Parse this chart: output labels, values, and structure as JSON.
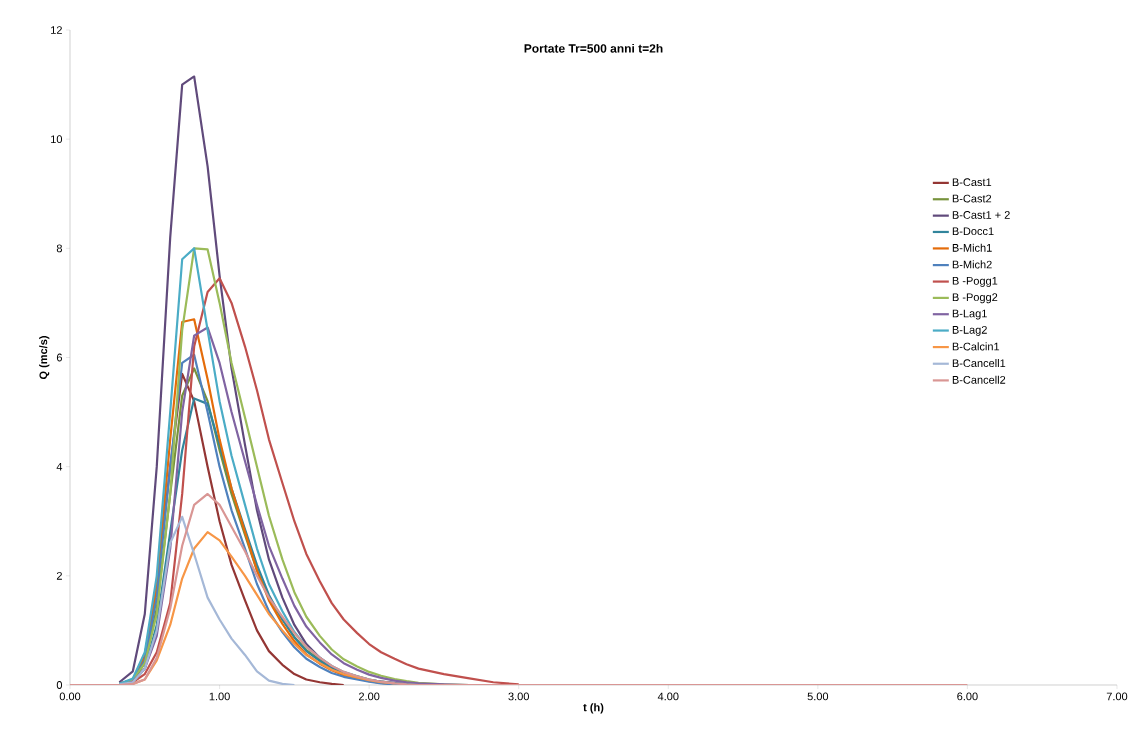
{
  "chart_data": {
    "type": "line",
    "title": "Portate Tr=500 anni t=2h",
    "xlabel": "t (h)",
    "ylabel": "Q (mc/s)",
    "x": [
      0,
      0.25,
      0.33,
      0.42,
      0.5,
      0.58,
      0.67,
      0.75,
      0.83,
      0.92,
      1.0,
      1.08,
      1.17,
      1.25,
      1.33,
      1.42,
      1.5,
      1.58,
      1.67,
      1.75,
      1.83,
      1.92,
      2.0,
      2.08,
      2.17,
      2.25,
      2.33,
      2.5,
      2.67,
      2.83,
      3.0,
      6.0
    ],
    "series": [
      {
        "name": "B-Cast1",
        "color": "#943634",
        "values": [
          null,
          null,
          0.02,
          0.1,
          0.55,
          1.8,
          4.0,
          5.7,
          5.2,
          4.0,
          3.0,
          2.2,
          1.55,
          1.0,
          0.62,
          0.37,
          0.2,
          0.1,
          0.05,
          0.02,
          0,
          null,
          null,
          null,
          null,
          null,
          null,
          null,
          null,
          null,
          null,
          null
        ]
      },
      {
        "name": "B-Cast2",
        "color": "#77933c",
        "values": [
          null,
          null,
          0.01,
          0.07,
          0.4,
          1.4,
          3.5,
          5.3,
          5.8,
          5.2,
          4.3,
          3.5,
          2.75,
          2.1,
          1.6,
          1.2,
          0.88,
          0.64,
          0.46,
          0.33,
          0.23,
          0.16,
          0.1,
          0.06,
          0.03,
          0.01,
          0,
          null,
          null,
          null,
          null,
          null
        ]
      },
      {
        "name": "B-Cast1 + 2",
        "color": "#604a7b",
        "values": [
          null,
          null,
          0.05,
          0.25,
          1.3,
          4.0,
          8.2,
          11.0,
          11.15,
          9.5,
          7.5,
          5.8,
          4.4,
          3.2,
          2.3,
          1.6,
          1.1,
          0.75,
          0.5,
          0.33,
          0.22,
          0.14,
          0.09,
          0.06,
          0.04,
          0.02,
          0.01,
          0,
          null,
          null,
          null,
          null
        ]
      },
      {
        "name": "B-Docc1",
        "color": "#31859c",
        "values": [
          null,
          null,
          0.01,
          0.05,
          0.3,
          1.1,
          2.8,
          4.3,
          5.25,
          5.15,
          4.4,
          3.6,
          2.85,
          2.2,
          1.65,
          1.2,
          0.87,
          0.62,
          0.44,
          0.3,
          0.2,
          0.13,
          0.08,
          0.05,
          0.02,
          0,
          null,
          null,
          null,
          null,
          null,
          null
        ]
      },
      {
        "name": "B-Mich1",
        "color": "#e46c0a",
        "values": [
          null,
          null,
          0.02,
          0.1,
          0.5,
          1.8,
          4.5,
          6.65,
          6.7,
          5.6,
          4.5,
          3.6,
          2.8,
          2.1,
          1.55,
          1.12,
          0.8,
          0.56,
          0.39,
          0.27,
          0.18,
          0.12,
          0.07,
          0.04,
          0.02,
          0,
          null,
          null,
          null,
          null,
          null,
          null
        ]
      },
      {
        "name": "B-Mich2",
        "color": "#4f81bd",
        "values": [
          null,
          null,
          0.02,
          0.08,
          0.45,
          1.6,
          4.0,
          5.9,
          6.05,
          5.0,
          4.0,
          3.2,
          2.5,
          1.85,
          1.35,
          0.97,
          0.69,
          0.48,
          0.33,
          0.22,
          0.15,
          0.1,
          0.06,
          0.03,
          0.01,
          0,
          null,
          null,
          null,
          null,
          null,
          null
        ]
      },
      {
        "name": "B -Pogg1",
        "color": "#c0504d",
        "values": [
          null,
          null,
          0,
          0.05,
          0.2,
          0.6,
          1.5,
          3.5,
          6.2,
          7.2,
          7.45,
          7.0,
          6.2,
          5.4,
          4.5,
          3.7,
          3.0,
          2.4,
          1.9,
          1.5,
          1.2,
          0.95,
          0.75,
          0.6,
          0.48,
          0.38,
          0.3,
          0.2,
          0.12,
          0.05,
          0.01,
          null
        ]
      },
      {
        "name": "B -Pogg2",
        "color": "#9bbb59",
        "values": [
          null,
          null,
          0.01,
          0.1,
          0.4,
          1.3,
          3.5,
          6.5,
          8.0,
          7.98,
          7.0,
          5.9,
          4.9,
          4.0,
          3.1,
          2.3,
          1.7,
          1.25,
          0.9,
          0.65,
          0.47,
          0.34,
          0.24,
          0.17,
          0.11,
          0.07,
          0.04,
          0.01,
          0,
          null,
          null,
          null
        ]
      },
      {
        "name": "B-Lag1",
        "color": "#8064a2",
        "values": [
          null,
          null,
          0,
          0.06,
          0.3,
          0.9,
          2.5,
          5.0,
          6.4,
          6.55,
          5.9,
          5.0,
          4.1,
          3.3,
          2.55,
          1.95,
          1.45,
          1.07,
          0.78,
          0.56,
          0.4,
          0.28,
          0.19,
          0.13,
          0.08,
          0.05,
          0.03,
          0.01,
          0,
          null,
          null,
          null
        ]
      },
      {
        "name": "B-Lag2",
        "color": "#4bacc6",
        "values": [
          null,
          null,
          0.02,
          0.12,
          0.6,
          2.0,
          5.0,
          7.8,
          8.0,
          6.5,
          5.2,
          4.2,
          3.3,
          2.5,
          1.85,
          1.35,
          0.97,
          0.7,
          0.5,
          0.35,
          0.24,
          0.16,
          0.1,
          0.06,
          0.03,
          0.01,
          0,
          null,
          null,
          null,
          null,
          null
        ]
      },
      {
        "name": "B-Calcin1",
        "color": "#f79646",
        "values": [
          null,
          null,
          0,
          0.02,
          0.1,
          0.45,
          1.1,
          1.95,
          2.5,
          2.8,
          2.65,
          2.35,
          2.0,
          1.65,
          1.3,
          1.0,
          0.75,
          0.55,
          0.4,
          0.28,
          0.2,
          0.14,
          0.09,
          0.05,
          0.03,
          null,
          null,
          null,
          null,
          null,
          null,
          null
        ]
      },
      {
        "name": "B-Cancell1",
        "color": "#a5b8d7",
        "values": [
          null,
          null,
          0.01,
          0.05,
          0.3,
          1.0,
          2.6,
          3.08,
          2.4,
          1.6,
          1.2,
          0.85,
          0.55,
          0.25,
          0.08,
          0.02,
          0,
          null,
          null,
          null,
          null,
          null,
          null,
          null,
          null,
          null,
          null,
          null,
          null,
          null,
          null,
          null
        ]
      },
      {
        "name": "B-Cancell2",
        "color": "#d99694",
        "values": [
          0,
          0,
          0,
          0.02,
          0.1,
          0.5,
          1.4,
          2.55,
          3.3,
          3.5,
          3.3,
          2.9,
          2.45,
          2.0,
          1.6,
          1.25,
          0.95,
          0.7,
          0.5,
          0.35,
          0.24,
          0.16,
          0.1,
          0.06,
          0.03,
          0.01,
          0,
          0,
          0,
          0,
          0,
          0
        ]
      }
    ],
    "xlim": [
      0,
      7
    ],
    "ylim": [
      0,
      12
    ],
    "xticks": [
      {
        "value": 0,
        "label": "0.00"
      },
      {
        "value": 1,
        "label": "1.00"
      },
      {
        "value": 2,
        "label": "2.00"
      },
      {
        "value": 3,
        "label": "3.00"
      },
      {
        "value": 4,
        "label": "4.00"
      },
      {
        "value": 5,
        "label": "5.00"
      },
      {
        "value": 6,
        "label": "6.00"
      },
      {
        "value": 7,
        "label": "7.00"
      }
    ],
    "yticks": [
      0,
      2,
      4,
      6,
      8,
      10,
      12
    ],
    "legend": "right",
    "grid": false,
    "marker": "none",
    "line_style": "solid"
  }
}
